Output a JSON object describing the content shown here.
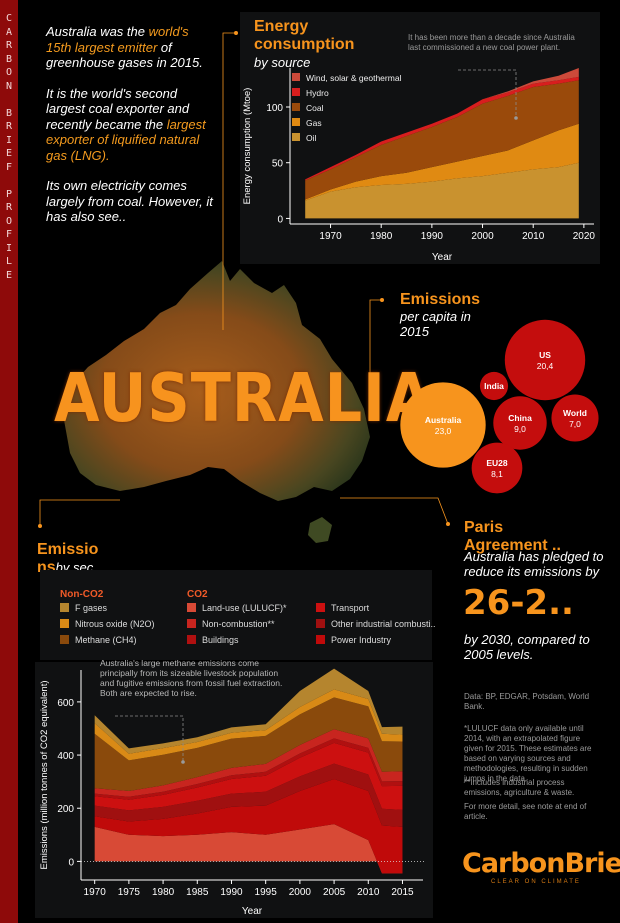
{
  "sidebar": {
    "letters": [
      "C",
      "A",
      "R",
      "B",
      "O",
      "N",
      "",
      "B",
      "R",
      "I",
      "E",
      "F",
      "",
      "P",
      "R",
      "O",
      "F",
      "I",
      "L",
      "E"
    ]
  },
  "intro": {
    "p1_pre": "Australia was the ",
    "p1_hl": "world's 15th largest emitter",
    "p1_post": " of greenhouse gases in 2015.",
    "p2_pre": "It is the world's second largest coal exporter and recently became the ",
    "p2_hl": "largest exporter of liquified natural gas (LNG).",
    "p3": "Its own electricity comes largely from coal. However, it has also see.."
  },
  "country_title": "AUSTRALIA",
  "energy": {
    "title_line1": "Energy",
    "title_line2": "consumption",
    "subtitle": "by source",
    "note": "It has been more than a decade since Australia last commissioned a new coal power plant."
  },
  "emissions_pc": {
    "title": "Emissions",
    "subtitle_line1": "per capita in",
    "subtitle_line2": "2015"
  },
  "paris": {
    "title_line1": "Paris",
    "title_line2": "Agreement ..",
    "text1": "Australia has pledged to reduce its emissions by",
    "big": "26-2..",
    "text2": "by 2030, compared to 2005 levels."
  },
  "sector": {
    "title_line1": "Emissio",
    "title_line2": "ns",
    "subtitle": "by sec..",
    "note": "Australia's large methane emissions come principally from its sizeable livestock population and fugitive emissions from fossil fuel extraction. Both are expected to rise.",
    "legend_head_non_co2": "Non-CO2",
    "legend_head_co2": "CO2",
    "legend": {
      "f_gases": "F gases",
      "nitrous": "Nitrous oxide (N2O)",
      "methane": "Methane (CH4)",
      "lulucf": "Land-use (LULUCF)*",
      "noncomb": "Non-combustion**",
      "buildings": "Buildings",
      "transport": "Transport",
      "other": "Other industrial combusti..",
      "power": "Power Industry"
    }
  },
  "notes": {
    "sources": "Data: BP, EDGAR, Potsdam, World Bank.",
    "lulucf": "*LULUCF data only available until 2014, with an extrapolated figure given for 2015. These estimates are based on varying sources and methodologies, resulting in sudden jumps in the data.",
    "industrial": "**Includes industrial process emissions, agriculture & waste.",
    "more": "For more detail, see note at end of article."
  },
  "logo": {
    "name": "CarbonBrief",
    "tagline": "CLEAR ON CLIMATE"
  },
  "colors": {
    "accent": "#f7941d",
    "sidebar": "#8e0a0a",
    "panel": "#101112",
    "energy": {
      "oil": "#c9922f",
      "gas": "#e08a12",
      "coal": "#9a4a0b",
      "hydro": "#d81e1e",
      "renew": "#cc4a3a"
    },
    "sector": {
      "f_gases": "#b5852e",
      "nitrous": "#d98a16",
      "methane": "#8a4a0c",
      "lulucf": "#d84a36",
      "noncomb": "#c8251f",
      "buildings": "#b01010",
      "transport": "#cc1010",
      "other": "#a01010",
      "power": "#c00a0a"
    },
    "bubble_red": "#c40d0d",
    "bubble_orange": "#f7941d"
  },
  "chart_data": [
    {
      "type": "area",
      "title": "Energy consumption",
      "ylabel": "Energy consumption (Mtoe)",
      "xlabel": "Year",
      "x": [
        1965,
        1970,
        1975,
        1980,
        1985,
        1990,
        1995,
        2000,
        2005,
        2010,
        2015,
        2019
      ],
      "xticks": [
        1970,
        1980,
        1990,
        2000,
        2010,
        2020
      ],
      "yticks": [
        0,
        50,
        100
      ],
      "xlim": [
        1962,
        2022
      ],
      "ylim": [
        -5,
        135
      ],
      "stacked": true,
      "series": [
        {
          "name": "Oil",
          "key": "oil",
          "values": [
            16,
            24,
            28,
            30,
            31,
            33,
            36,
            38,
            41,
            44,
            46,
            50
          ]
        },
        {
          "name": "Gas",
          "key": "gas",
          "values": [
            1,
            2,
            5,
            8,
            10,
            13,
            15,
            18,
            20,
            26,
            33,
            35
          ]
        },
        {
          "name": "Coal",
          "key": "coal",
          "values": [
            17,
            18,
            22,
            28,
            33,
            36,
            40,
            47,
            49,
            48,
            42,
            39
          ]
        },
        {
          "name": "Hydro",
          "key": "hydro",
          "values": [
            1,
            2,
            2,
            3,
            3,
            3,
            3,
            4,
            3,
            3,
            3,
            3
          ]
        },
        {
          "name": "Wind, solar & geothermal",
          "key": "renew",
          "values": [
            0,
            0,
            0,
            0,
            0,
            0,
            0,
            0,
            1,
            2,
            4,
            8
          ]
        }
      ]
    },
    {
      "type": "bubble",
      "title": "Emissions per capita in 2015",
      "series": [
        {
          "name": "US",
          "value": 20.4,
          "label": "20,4"
        },
        {
          "name": "Australia",
          "value": 23.0,
          "label": "23,0"
        },
        {
          "name": "India",
          "value": 2.5,
          "label": ""
        },
        {
          "name": "China",
          "value": 9.0,
          "label": "9,0"
        },
        {
          "name": "World",
          "value": 7.0,
          "label": "7,0"
        },
        {
          "name": "EU28",
          "value": 8.1,
          "label": "8,1"
        }
      ]
    },
    {
      "type": "area",
      "title": "Emissions by sector",
      "ylabel": "Emissions (million tonnes of CO2 equivalent)",
      "xlabel": "Year",
      "x": [
        1970,
        1975,
        1980,
        1985,
        1990,
        1995,
        2000,
        2005,
        2010,
        2012,
        2015
      ],
      "xticks": [
        1970,
        1975,
        1980,
        1985,
        1990,
        1995,
        2000,
        2005,
        2010,
        2015
      ],
      "yticks": [
        0,
        200,
        400,
        600
      ],
      "xlim": [
        1968,
        2018
      ],
      "ylim": [
        -70,
        720
      ],
      "stacked": true,
      "series": [
        {
          "name": "Land-use (LULUCF)*",
          "key": "lulucf",
          "values": [
            130,
            100,
            95,
            100,
            110,
            100,
            120,
            140,
            80,
            -45,
            -45
          ]
        },
        {
          "name": "Power Industry",
          "key": "power",
          "values": [
            40,
            50,
            65,
            80,
            95,
            110,
            145,
            170,
            185,
            180,
            175
          ]
        },
        {
          "name": "Other industrial combustion",
          "key": "other",
          "values": [
            40,
            42,
            45,
            48,
            50,
            52,
            55,
            58,
            62,
            63,
            64
          ]
        },
        {
          "name": "Transport",
          "key": "transport",
          "values": [
            35,
            40,
            45,
            50,
            55,
            60,
            70,
            78,
            82,
            85,
            90
          ]
        },
        {
          "name": "Buildings",
          "key": "buildings",
          "values": [
            10,
            11,
            12,
            13,
            14,
            15,
            16,
            17,
            18,
            18,
            18
          ]
        },
        {
          "name": "Non-combustion**",
          "key": "noncomb",
          "values": [
            20,
            22,
            24,
            26,
            28,
            30,
            32,
            34,
            36,
            36,
            37
          ]
        },
        {
          "name": "Methane (CH4)",
          "key": "methane",
          "values": [
            205,
            115,
            115,
            110,
            110,
            105,
            115,
            120,
            120,
            115,
            112
          ]
        },
        {
          "name": "Nitrous oxide (N2O)",
          "key": "nitrous",
          "values": [
            40,
            25,
            25,
            22,
            22,
            22,
            28,
            30,
            28,
            28,
            26
          ]
        },
        {
          "name": "F gases",
          "key": "f_gases",
          "values": [
            30,
            20,
            18,
            18,
            20,
            22,
            60,
            78,
            30,
            25,
            30
          ]
        }
      ]
    }
  ]
}
